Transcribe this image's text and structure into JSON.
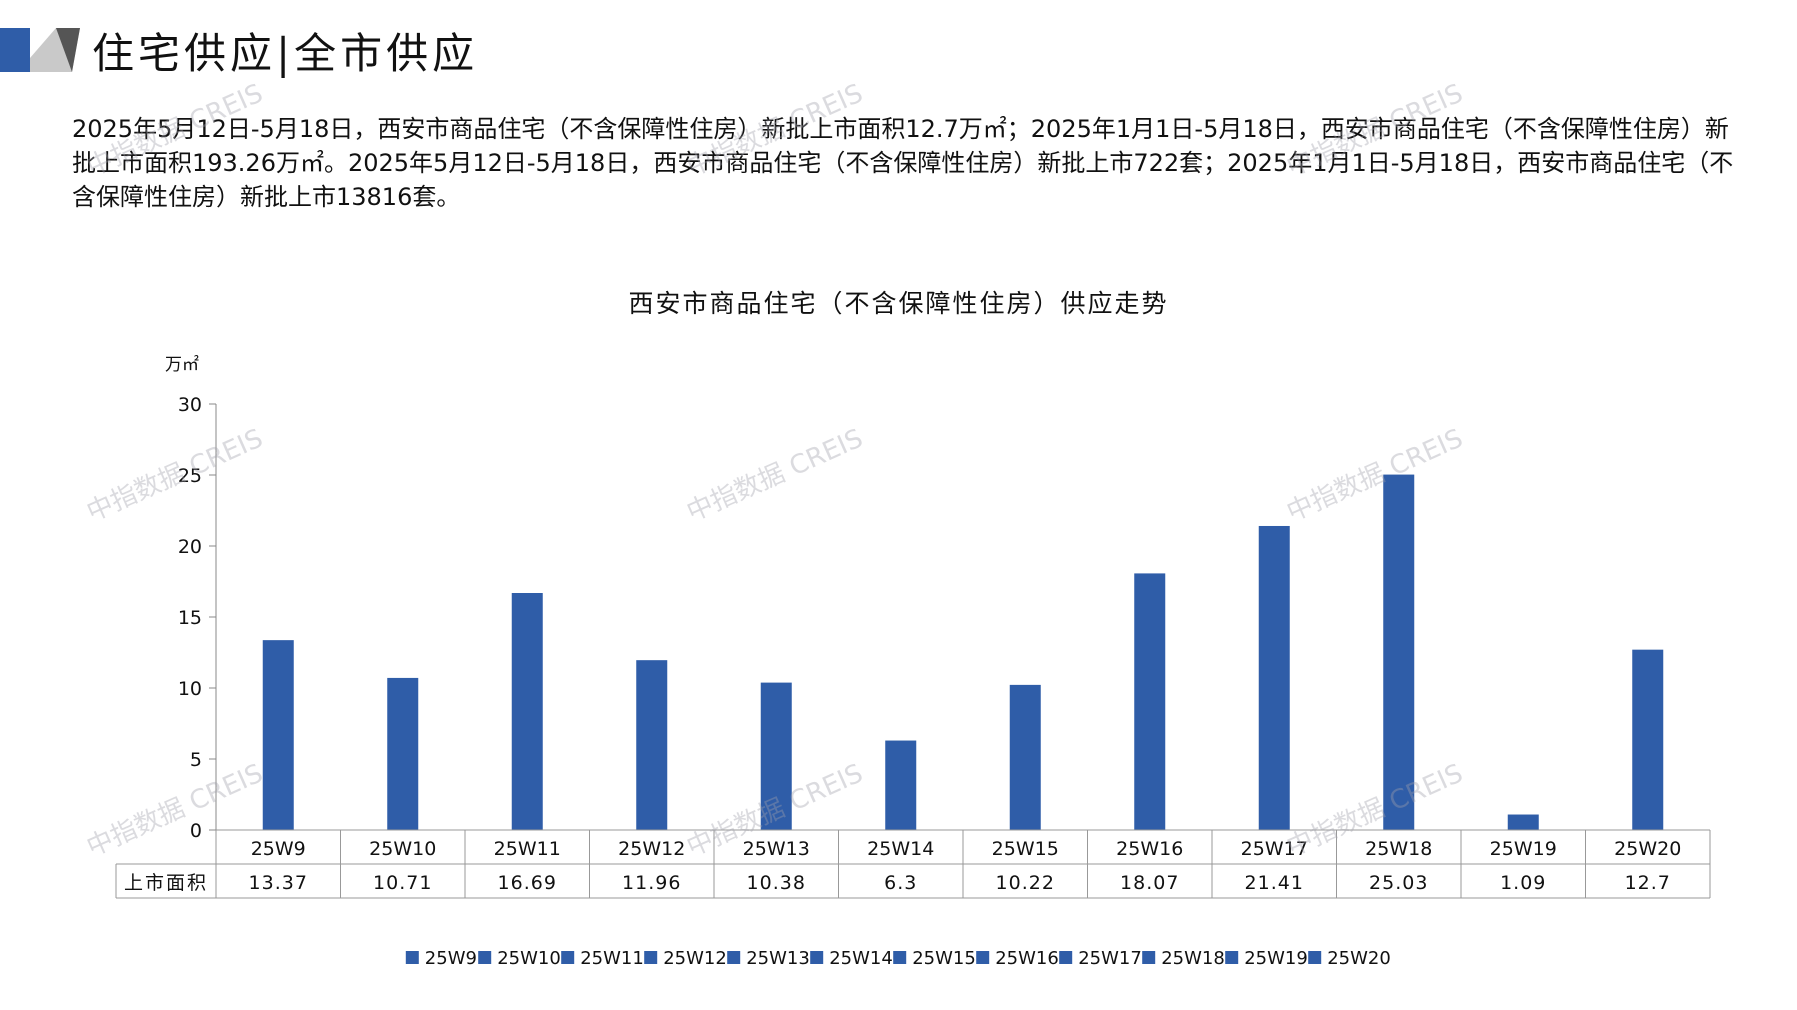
{
  "header": {
    "title": "住宅供应|全市供应",
    "accent_color": "#2F5DA8"
  },
  "summary": {
    "text": "2025年5月12日-5月18日，西安市商品住宅（不含保障性住房）新批上市面积12.7万㎡；2025年1月1日-5月18日，西安市商品住宅（不含保障性住房）新批上市面积193.26万㎡。2025年5月12日-5月18日，西安市商品住宅（不含保障性住房）新批上市722套；2025年1月1日-5月18日，西安市商品住宅（不含保障性住房）新批上市13816套。"
  },
  "watermark": "中指数据 CREIS",
  "chart_data": {
    "type": "bar",
    "title": "西安市商品住宅（不含保障性住房）供应走势",
    "ylabel": "万㎡",
    "ylim": [
      0,
      30
    ],
    "yticks": [
      0,
      5,
      10,
      15,
      20,
      25,
      30
    ],
    "categories": [
      "25W9",
      "25W10",
      "25W11",
      "25W12",
      "25W13",
      "25W14",
      "25W15",
      "25W16",
      "25W17",
      "25W18",
      "25W19",
      "25W20"
    ],
    "series": [
      {
        "name": "上市面积",
        "values": [
          13.37,
          10.71,
          16.69,
          11.96,
          10.38,
          6.3,
          10.22,
          18.07,
          21.41,
          25.03,
          1.09,
          12.7
        ],
        "value_labels": [
          "13.37",
          "10.71",
          "16.69",
          "11.96",
          "10.38",
          "6.3",
          "10.22",
          "18.07",
          "21.41",
          "25.03",
          "1.09",
          "12.7"
        ],
        "color": "#2F5DA8"
      }
    ],
    "grid": false,
    "data_table": true,
    "legend_position": "bottom"
  }
}
